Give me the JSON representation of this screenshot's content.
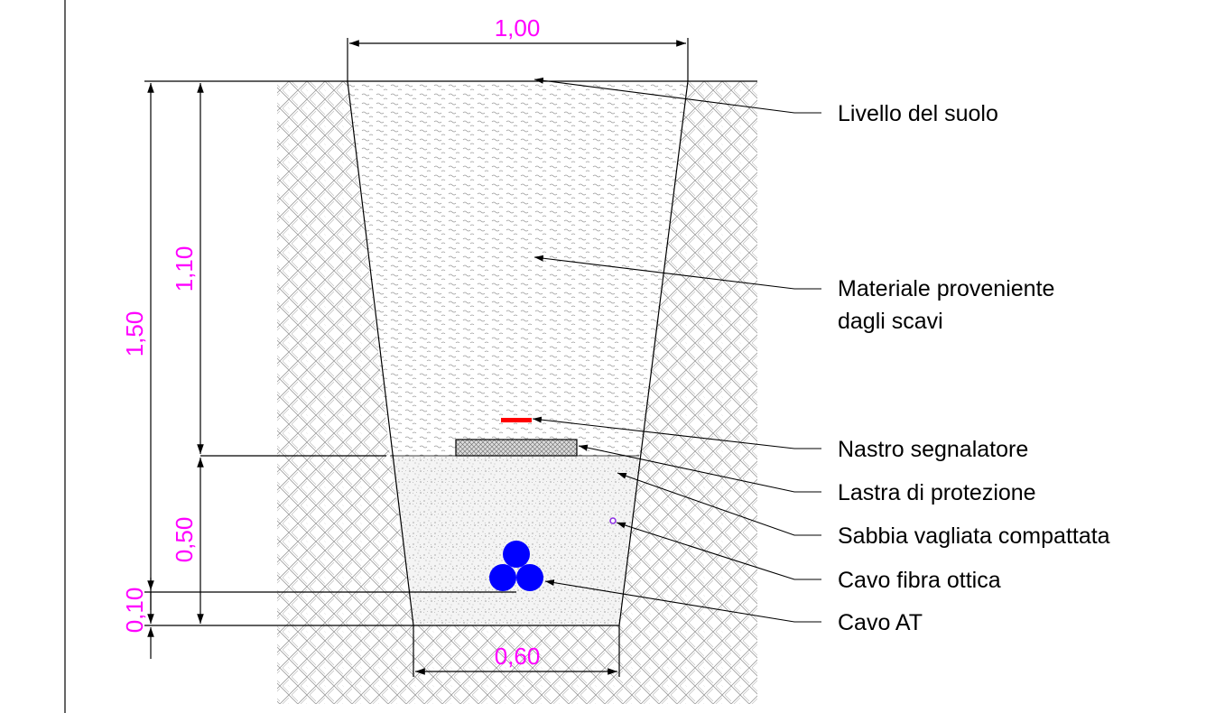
{
  "dimensions": {
    "top_width": "1,00",
    "bottom_width": "0,60",
    "total_depth": "1,50",
    "backfill_depth": "1,10",
    "sand_depth": "0,50",
    "bedding_depth": "0,10"
  },
  "labels": {
    "ground_level": "Livello del suolo",
    "excavated_material_line1": "Materiale proveniente",
    "excavated_material_line2": "dagli scavi",
    "warning_tape": "Nastro segnalatore",
    "protection_slab": "Lastra di protezione",
    "compacted_sand": "Sabbia vagliata compattata",
    "fiber_optic_cable": "Cavo fibra ottica",
    "hv_cable": "Cavo AT"
  },
  "colors": {
    "dimension": "#ff00ff",
    "warning_tape": "#ff0000",
    "hv_cable": "#0000ff",
    "fiber_optic": "#8a2be2",
    "line": "#000000"
  }
}
